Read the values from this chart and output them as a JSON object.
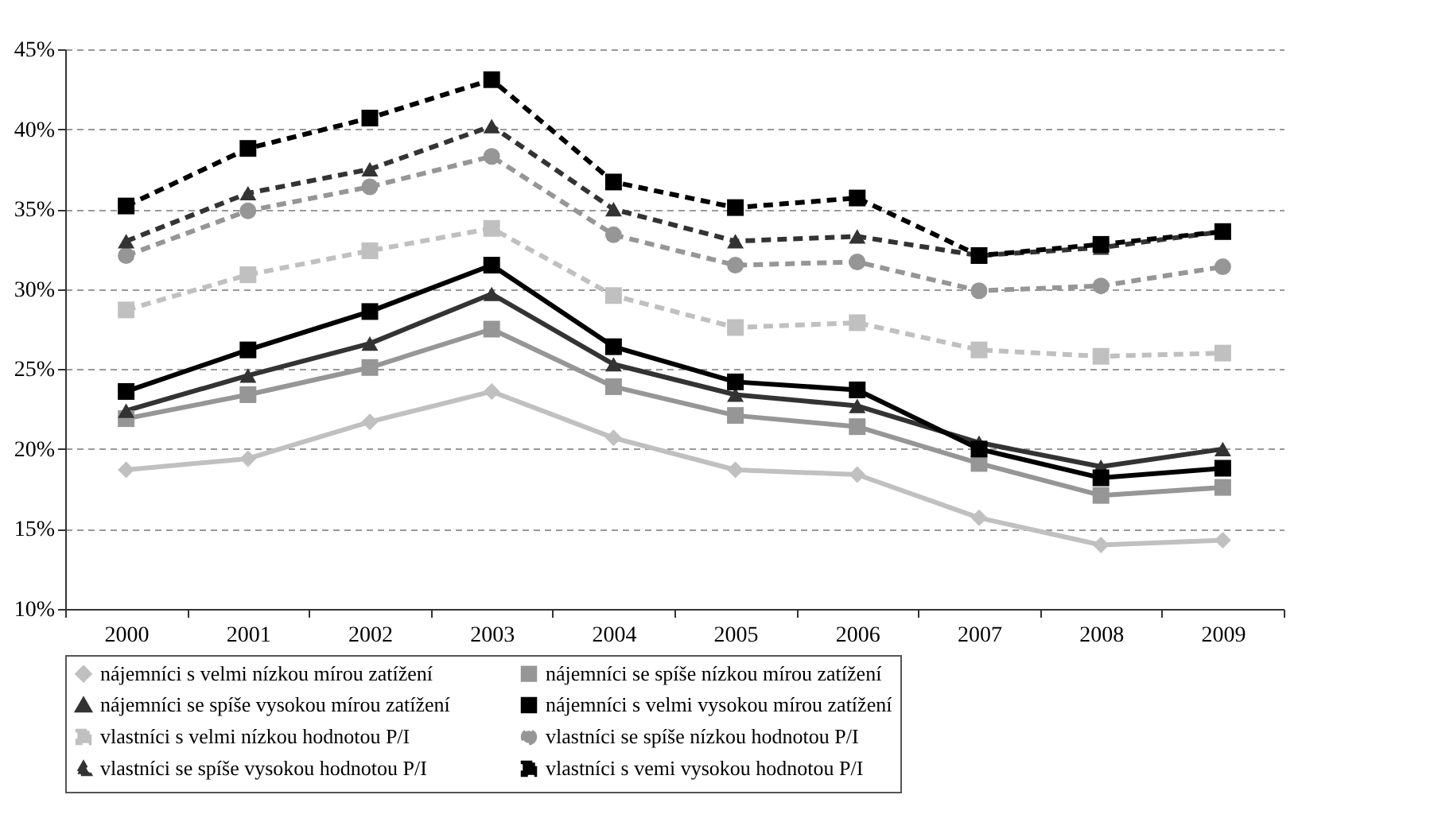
{
  "chart_data": {
    "type": "line",
    "categories": [
      "2000",
      "2001",
      "2002",
      "2003",
      "2004",
      "2005",
      "2006",
      "2007",
      "2008",
      "2009"
    ],
    "ylim": [
      10,
      45
    ],
    "yticks": [
      {
        "value": 10,
        "label": "10%"
      },
      {
        "value": 15,
        "label": "15%"
      },
      {
        "value": 20,
        "label": "20%"
      },
      {
        "value": 25,
        "label": "25%"
      },
      {
        "value": 30,
        "label": "30%"
      },
      {
        "value": 35,
        "label": "35%"
      },
      {
        "value": 40,
        "label": "40%"
      },
      {
        "value": 45,
        "label": "45%"
      }
    ],
    "grid": "y",
    "legend": "bottom",
    "series": [
      {
        "name": "nájemníci s velmi nízkou mírou zatížení",
        "color": "#c0c0c0",
        "marker": "diamond",
        "line_style": "solid",
        "values": [
          18.7,
          19.4,
          21.7,
          23.6,
          20.7,
          18.7,
          18.4,
          15.7,
          14.0,
          14.3
        ]
      },
      {
        "name": "nájemníci se spíše nízkou mírou zatížení",
        "color": "#969696",
        "marker": "square",
        "line_style": "solid",
        "values": [
          21.9,
          23.4,
          25.1,
          27.5,
          23.9,
          22.1,
          21.4,
          19.1,
          17.1,
          17.6
        ]
      },
      {
        "name": "nájemníci se spíše vysokou mírou zatížení",
        "color": "#333333",
        "marker": "triangle",
        "line_style": "solid",
        "values": [
          22.4,
          24.6,
          26.6,
          29.7,
          25.3,
          23.4,
          22.7,
          20.4,
          18.9,
          20.0
        ]
      },
      {
        "name": "nájemníci s velmi vysokou mírou zatížení",
        "color": "#000000",
        "marker": "square",
        "line_style": "solid",
        "values": [
          23.6,
          26.2,
          28.6,
          31.5,
          26.4,
          24.2,
          23.7,
          20.0,
          18.2,
          18.8
        ]
      },
      {
        "name": "vlastníci s velmi nízkou hodnotou P/I",
        "color": "#c0c0c0",
        "marker": "square",
        "line_style": "dashed",
        "values": [
          28.7,
          30.9,
          32.4,
          33.8,
          29.6,
          27.6,
          27.9,
          26.2,
          25.8,
          26.0
        ]
      },
      {
        "name": "vlastníci se spíše nízkou hodnotou P/I",
        "color": "#969696",
        "marker": "circle",
        "line_style": "dashed",
        "values": [
          32.1,
          34.9,
          36.4,
          38.3,
          33.4,
          31.5,
          31.7,
          29.9,
          30.2,
          31.4
        ]
      },
      {
        "name": "vlastníci se spíše vysokou hodnotou P/I",
        "color": "#333333",
        "marker": "triangle",
        "line_style": "dashed",
        "values": [
          33.0,
          36.0,
          37.5,
          40.2,
          35.0,
          33.0,
          33.3,
          32.1,
          32.6,
          33.6
        ]
      },
      {
        "name": "vlastníci s vemi vysokou hodnotou P/I",
        "color": "#000000",
        "marker": "square",
        "line_style": "dashed",
        "values": [
          35.2,
          38.8,
          40.7,
          43.1,
          36.7,
          35.1,
          35.7,
          32.1,
          32.8,
          33.6
        ]
      }
    ]
  }
}
